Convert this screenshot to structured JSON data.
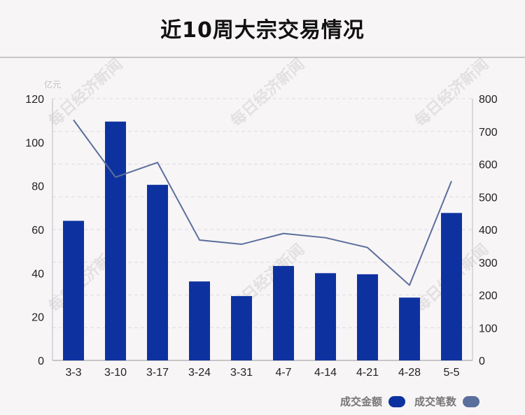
{
  "chart_data": {
    "type": "bar",
    "title": "近10周大宗交易情况",
    "y_unit_label": "亿元",
    "categories": [
      "3-3",
      "3-10",
      "3-17",
      "3-24",
      "3-31",
      "4-7",
      "4-14",
      "4-21",
      "4-28",
      "5-5"
    ],
    "series": [
      {
        "name": "成交金额",
        "type": "bar",
        "axis": "left",
        "color": "#0d32a0",
        "values": [
          64,
          109.5,
          80.5,
          36.2,
          29.5,
          43.3,
          40,
          39.5,
          28.8,
          67.6
        ]
      },
      {
        "name": "成交笔数",
        "type": "line",
        "axis": "right",
        "color": "#5b6f9c",
        "values": [
          735,
          560,
          605,
          368,
          355,
          388,
          375,
          345,
          230,
          548
        ]
      }
    ],
    "y_left": {
      "range": [
        0,
        120
      ],
      "ticks": [
        0,
        20,
        40,
        60,
        80,
        100,
        120
      ]
    },
    "y_right": {
      "range": [
        0,
        800
      ],
      "ticks": [
        0,
        100,
        200,
        300,
        400,
        500,
        600,
        700,
        800
      ]
    },
    "grid": true,
    "legend_position": "bottom-right"
  },
  "watermark": "每日经济新闻"
}
